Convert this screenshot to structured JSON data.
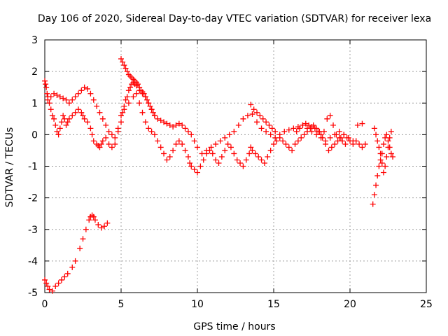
{
  "chart_data": {
    "type": "scatter",
    "title": "Day 106 of 2020, Sidereal Day-to-day VTEC variation (SDTVAR) for receiver lexa",
    "xlabel": "GPS time / hours",
    "ylabel": "SDTVAR / TECUs",
    "xlim": [
      0,
      25
    ],
    "ylim": [
      -5,
      3
    ],
    "x_ticks": [
      0,
      5,
      10,
      15,
      20,
      25
    ],
    "y_ticks": [
      -5,
      -4,
      -3,
      -2,
      -1,
      0,
      1,
      2,
      3
    ],
    "grid": true,
    "marker": "+",
    "series": [
      {
        "name": "SDTVAR",
        "color": "#ff0000",
        "x": [
          0.0,
          0.1,
          0.2,
          0.3,
          0.5,
          0.7,
          0.9,
          1.1,
          1.3,
          1.5,
          1.8,
          2.0,
          2.3,
          2.5,
          2.7,
          2.9,
          3.0,
          3.1,
          3.2,
          3.3,
          3.5,
          3.7,
          3.9,
          4.1,
          0.0,
          0.05,
          0.1,
          0.15,
          0.2,
          0.3,
          0.4,
          0.5,
          0.6,
          0.7,
          0.8,
          0.9,
          1.0,
          1.1,
          1.2,
          1.3,
          1.4,
          1.5,
          1.6,
          1.8,
          2.0,
          2.2,
          2.4,
          2.5,
          2.6,
          2.8,
          3.0,
          3.1,
          3.2,
          3.4,
          3.5,
          3.6,
          3.7,
          3.8,
          4.0,
          4.2,
          4.4,
          4.6,
          4.8,
          5.0,
          5.2,
          5.5,
          5.8,
          6.0,
          6.2,
          6.4,
          6.6,
          6.8,
          7.0,
          7.2,
          7.4,
          7.6,
          7.8,
          8.0,
          8.2,
          8.4,
          8.6,
          8.8,
          9.0,
          9.2,
          9.4,
          9.5,
          9.6,
          9.8,
          10.0,
          10.2,
          10.4,
          10.6,
          10.8,
          11.0,
          11.2,
          11.4,
          11.6,
          11.8,
          12.0,
          12.2,
          12.4,
          12.6,
          12.8,
          13.0,
          13.2,
          13.4,
          13.5,
          13.6,
          13.8,
          14.0,
          14.2,
          14.4,
          14.6,
          14.8,
          15.0,
          15.2,
          15.4,
          15.6,
          15.8,
          16.0,
          16.2,
          16.4,
          16.6,
          16.8,
          17.0,
          17.2,
          17.4,
          17.6,
          17.8,
          18.0,
          18.2,
          18.4,
          18.6,
          18.8,
          19.0,
          19.2,
          19.4,
          19.6,
          19.8,
          20.0,
          20.2,
          20.4,
          20.6,
          20.8,
          21.0,
          0.2,
          0.4,
          0.6,
          0.8,
          1.0,
          1.2,
          1.4,
          1.6,
          1.8,
          2.0,
          2.2,
          2.4,
          2.6,
          2.8,
          3.0,
          3.2,
          3.4,
          3.6,
          3.8,
          4.0,
          4.2,
          4.4,
          4.6,
          4.8,
          5.0,
          5.1,
          5.2,
          5.3,
          5.4,
          5.5,
          5.6,
          5.7,
          5.8,
          5.9,
          6.0,
          6.2,
          6.4,
          6.6,
          6.8,
          7.0,
          7.2,
          7.4,
          7.6,
          7.8,
          8.0,
          8.2,
          8.4,
          8.6,
          8.8,
          9.0,
          9.2,
          9.4,
          9.6,
          9.8,
          10.0,
          10.3,
          10.6,
          10.9,
          11.2,
          11.5,
          11.8,
          12.1,
          12.4,
          12.7,
          13.0,
          13.3,
          13.6,
          13.9,
          14.2,
          14.5,
          14.8,
          15.1,
          15.4,
          15.7,
          16.0,
          16.3,
          16.6,
          16.9,
          17.2,
          17.5,
          17.8,
          18.1,
          18.4,
          18.7,
          19.0,
          19.3,
          19.6,
          19.9,
          20.2,
          20.5,
          20.8,
          21.5,
          21.6,
          21.7,
          21.8,
          21.9,
          22.0,
          22.1,
          22.2,
          22.3,
          22.4,
          22.5,
          22.6,
          22.7,
          22.8,
          21.6,
          21.7,
          21.8,
          21.9,
          22.0,
          22.1,
          22.2,
          22.3,
          22.4,
          22.5,
          22.6,
          22.7,
          5.0,
          5.1,
          5.2,
          5.3,
          5.4,
          5.5,
          5.6,
          5.7,
          5.8,
          5.9,
          6.0,
          6.1,
          6.2,
          6.3,
          6.4,
          6.5,
          6.6,
          6.7,
          6.8,
          6.9,
          7.0,
          7.1,
          7.2,
          13.5,
          13.7,
          13.9,
          14.1,
          14.3,
          14.5,
          14.7,
          14.9,
          15.1,
          16.5,
          16.7,
          16.9,
          17.1,
          17.3,
          17.5,
          17.7,
          17.9,
          18.1,
          18.3,
          18.5,
          18.7,
          18.9,
          19.1,
          19.3,
          19.5,
          19.7
        ],
        "y": [
          -4.6,
          -4.7,
          -4.8,
          -4.9,
          -4.95,
          -4.8,
          -4.7,
          -4.6,
          -4.5,
          -4.4,
          -4.2,
          -4.0,
          -3.6,
          -3.3,
          -3.0,
          -2.7,
          -2.6,
          -2.55,
          -2.6,
          -2.7,
          -2.85,
          -2.95,
          -2.9,
          -2.8,
          1.7,
          1.6,
          1.5,
          1.3,
          1.2,
          1.0,
          0.8,
          0.6,
          0.5,
          0.3,
          0.1,
          0.0,
          0.2,
          0.4,
          0.6,
          0.5,
          0.3,
          0.4,
          0.5,
          0.6,
          0.7,
          0.8,
          0.7,
          0.6,
          0.5,
          0.4,
          0.2,
          0.0,
          -0.2,
          -0.3,
          -0.35,
          -0.4,
          -0.3,
          -0.2,
          -0.1,
          -0.3,
          -0.4,
          -0.3,
          0.2,
          0.6,
          0.8,
          1.0,
          1.2,
          1.3,
          1.0,
          0.7,
          0.4,
          0.2,
          0.1,
          0.0,
          -0.2,
          -0.4,
          -0.6,
          -0.8,
          -0.7,
          -0.5,
          -0.3,
          -0.2,
          -0.3,
          -0.5,
          -0.7,
          -0.9,
          -1.0,
          -1.1,
          -1.2,
          -1.0,
          -0.8,
          -0.6,
          -0.5,
          -0.6,
          -0.8,
          -0.9,
          -0.7,
          -0.5,
          -0.3,
          -0.4,
          -0.6,
          -0.8,
          -0.9,
          -1.0,
          -0.8,
          -0.6,
          -0.4,
          -0.5,
          -0.6,
          -0.7,
          -0.8,
          -0.9,
          -0.7,
          -0.5,
          -0.3,
          -0.2,
          -0.1,
          -0.2,
          -0.3,
          -0.4,
          -0.5,
          -0.3,
          -0.2,
          -0.1,
          0.0,
          0.1,
          0.2,
          0.3,
          0.2,
          0.1,
          -0.1,
          -0.3,
          -0.5,
          -0.4,
          -0.3,
          -0.2,
          -0.1,
          0.0,
          -0.1,
          -0.2,
          -0.3,
          -0.2,
          -0.3,
          -0.4,
          -0.3,
          1.1,
          1.2,
          1.3,
          1.25,
          1.2,
          1.15,
          1.1,
          1.0,
          1.1,
          1.2,
          1.3,
          1.4,
          1.5,
          1.45,
          1.3,
          1.1,
          0.9,
          0.7,
          0.5,
          0.3,
          0.1,
          0.0,
          -0.1,
          0.1,
          0.4,
          0.7,
          0.9,
          1.1,
          1.2,
          1.4,
          1.5,
          1.6,
          1.65,
          1.6,
          1.55,
          1.4,
          1.3,
          1.2,
          1.0,
          0.8,
          0.6,
          0.5,
          0.45,
          0.4,
          0.35,
          0.3,
          0.25,
          0.3,
          0.35,
          0.3,
          0.2,
          0.1,
          0.0,
          -0.2,
          -0.4,
          -0.6,
          -0.5,
          -0.4,
          -0.3,
          -0.2,
          -0.1,
          0.0,
          0.1,
          0.3,
          0.5,
          0.6,
          0.65,
          0.4,
          0.2,
          0.1,
          0.0,
          -0.1,
          0.0,
          0.1,
          0.15,
          0.2,
          0.25,
          0.3,
          0.2,
          0.1,
          0.0,
          -0.1,
          -0.2,
          -0.1,
          0.0,
          0.1,
          0.0,
          -0.1,
          -0.2,
          0.3,
          0.35,
          -2.2,
          -1.9,
          -1.6,
          -1.3,
          -1.0,
          -0.8,
          -0.6,
          -0.3,
          -0.1,
          0.0,
          -0.2,
          -0.4,
          -0.6,
          -0.7,
          0.2,
          0.0,
          -0.2,
          -0.4,
          -0.6,
          -0.9,
          -1.2,
          -1.0,
          -0.7,
          -0.4,
          -0.1,
          0.1,
          2.4,
          2.3,
          2.2,
          2.1,
          2.0,
          1.9,
          1.85,
          1.8,
          1.75,
          1.7,
          1.65,
          1.6,
          1.5,
          1.4,
          1.35,
          1.3,
          1.2,
          1.1,
          1.0,
          0.9,
          0.8,
          0.7,
          0.6,
          0.95,
          0.8,
          0.7,
          0.6,
          0.5,
          0.4,
          0.3,
          0.2,
          0.1,
          0.1,
          0.2,
          0.3,
          0.35,
          0.3,
          0.25,
          0.2,
          0.1,
          0.0,
          0.1,
          0.5,
          0.6,
          0.3,
          0.0,
          -0.1,
          -0.2,
          -0.3
        ]
      }
    ]
  }
}
